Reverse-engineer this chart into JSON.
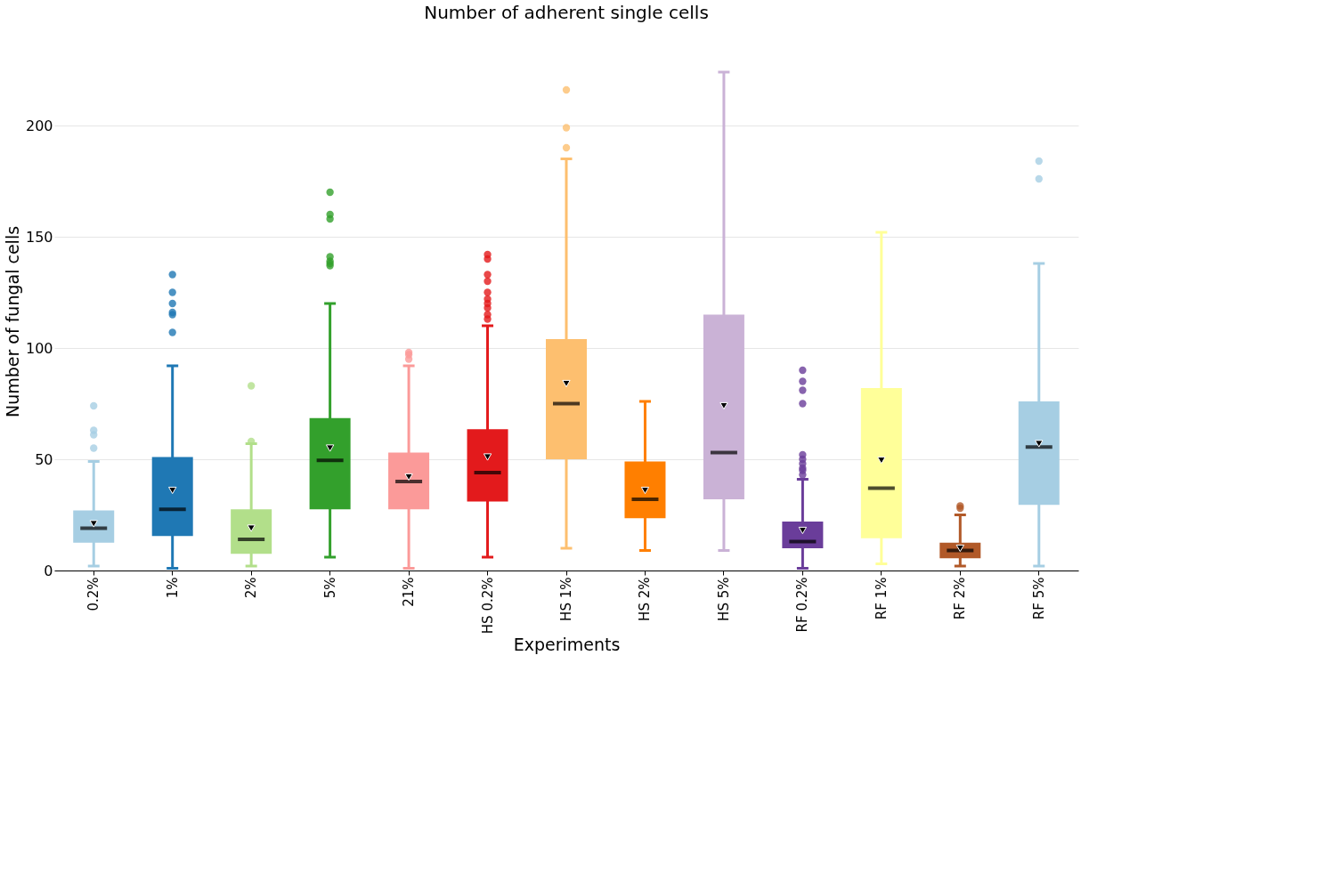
{
  "chart_data": {
    "type": "box",
    "title": "Number of adherent single cells",
    "xlabel": "Experiments",
    "ylabel": "Number of fungal cells",
    "categories": [
      "0.2%",
      "1%",
      "2%",
      "5%",
      "21%",
      "HS 0.2%",
      "HS 1%",
      "HS 2%",
      "HS 5%",
      "RF 0.2%",
      "RF 1%",
      "RF 2%",
      "RF 5%"
    ],
    "colors": [
      "#a6cee3",
      "#1f78b4",
      "#b2df8a",
      "#33a02c",
      "#fb9a99",
      "#e31a1c",
      "#fdbf6f",
      "#ff7f00",
      "#cab2d6",
      "#6a3d9a",
      "#ffff99",
      "#b15928",
      "#a6cee3"
    ],
    "boxes": [
      {
        "low": 2,
        "q1": 12.5,
        "median": 19,
        "q3": 27,
        "high": 49,
        "mean": 21,
        "outliers": [
          55,
          61,
          63,
          74
        ]
      },
      {
        "low": 1,
        "q1": 15.5,
        "median": 27.5,
        "q3": 51,
        "high": 92,
        "mean": 36,
        "outliers": [
          107,
          115,
          116,
          120,
          125,
          133
        ]
      },
      {
        "low": 2,
        "q1": 7.5,
        "median": 14,
        "q3": 27.5,
        "high": 57,
        "mean": 19,
        "outliers": [
          58,
          83
        ]
      },
      {
        "low": 6,
        "q1": 27.5,
        "median": 49.5,
        "q3": 68.5,
        "high": 120,
        "mean": 55,
        "outliers": [
          137,
          138,
          139,
          141,
          158,
          160,
          170
        ]
      },
      {
        "low": 1,
        "q1": 27.5,
        "median": 40,
        "q3": 53,
        "high": 92,
        "mean": 42,
        "outliers": [
          95,
          97,
          98
        ]
      },
      {
        "low": 6,
        "q1": 31,
        "median": 44,
        "q3": 63.5,
        "high": 110,
        "mean": 51,
        "outliers": [
          113,
          115,
          118,
          120,
          122,
          125,
          130,
          133,
          140,
          142
        ]
      },
      {
        "low": 10,
        "q1": 50,
        "median": 75,
        "q3": 104,
        "high": 185,
        "mean": 84,
        "outliers": [
          190,
          199,
          216
        ]
      },
      {
        "low": 9,
        "q1": 23.5,
        "median": 32,
        "q3": 49,
        "high": 76,
        "mean": 36
      },
      {
        "low": 9,
        "q1": 32,
        "median": 53,
        "q3": 115,
        "high": 224,
        "mean": 74
      },
      {
        "low": 1,
        "q1": 10,
        "median": 13,
        "q3": 22,
        "high": 41,
        "mean": 18,
        "outliers": [
          43,
          45,
          46,
          48,
          50,
          52,
          75,
          81,
          85,
          90
        ]
      },
      {
        "low": 3,
        "q1": 14.5,
        "median": 37,
        "q3": 82,
        "high": 152,
        "mean": 49.5
      },
      {
        "low": 2,
        "q1": 5.5,
        "median": 9,
        "q3": 12.5,
        "high": 25,
        "mean": 10,
        "outliers": [
          28,
          29
        ]
      },
      {
        "low": 2,
        "q1": 29.5,
        "median": 55.5,
        "q3": 76,
        "high": 138,
        "mean": 57,
        "outliers": [
          176,
          184
        ]
      }
    ],
    "ylim": [
      0,
      224
    ],
    "yticks": [
      0,
      50,
      100,
      150,
      200
    ],
    "grid": "y"
  }
}
